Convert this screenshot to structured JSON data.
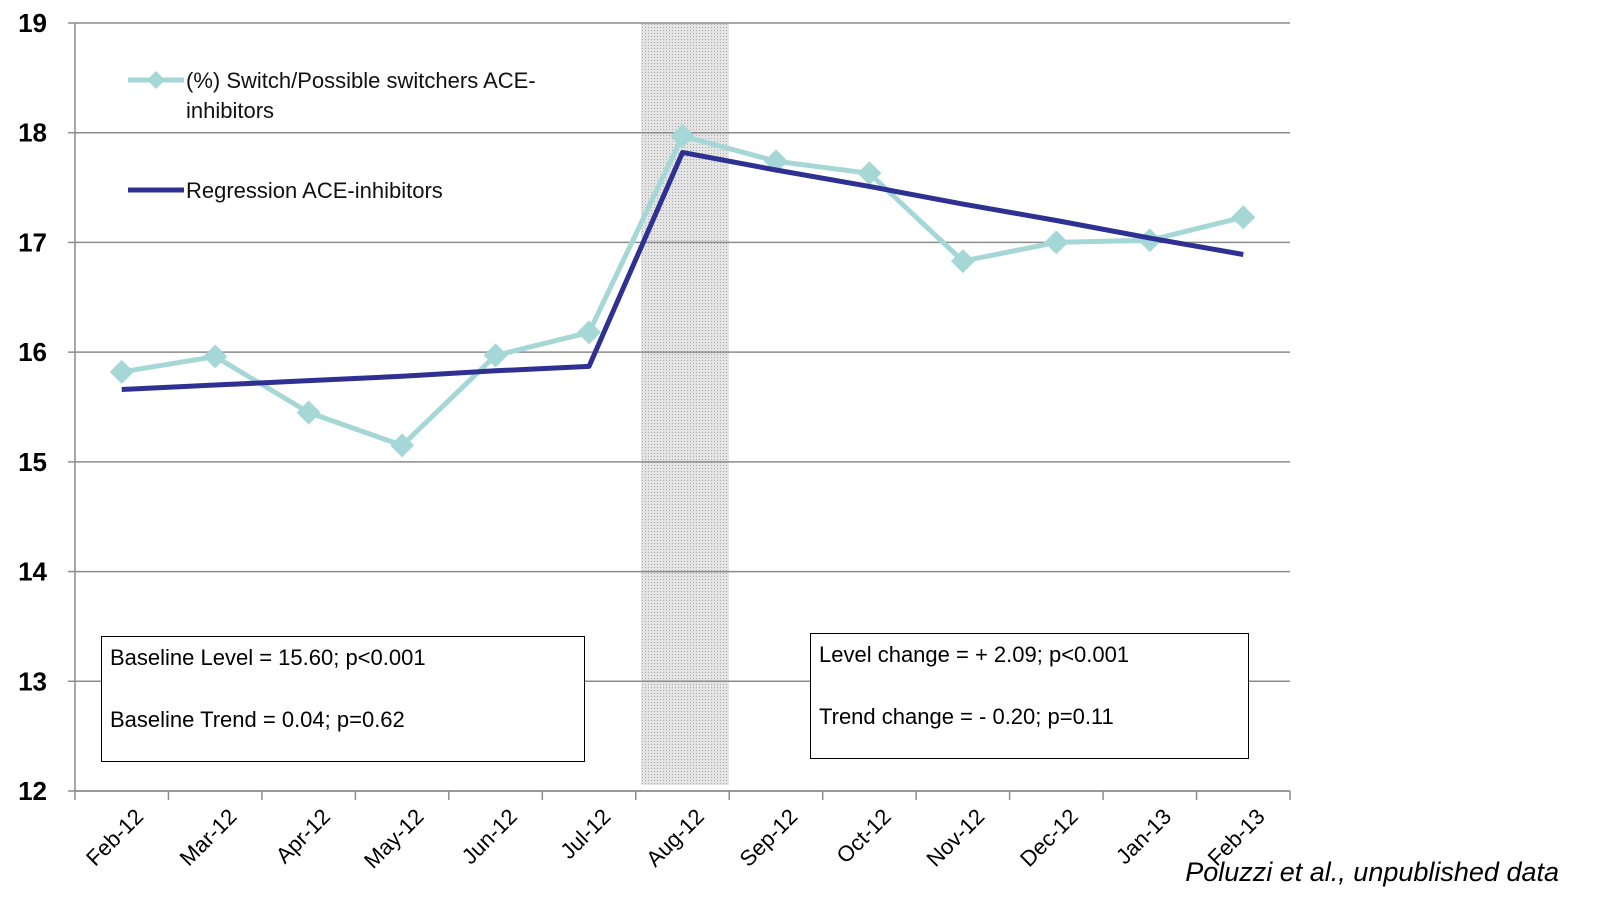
{
  "chart_data": {
    "type": "line",
    "categories": [
      "Feb-12",
      "Mar-12",
      "Apr-12",
      "May-12",
      "Jun-12",
      "Jul-12",
      "Aug-12",
      "Sep-12",
      "Oct-12",
      "Nov-12",
      "Dec-12",
      "Jan-13",
      "Feb-13"
    ],
    "series": [
      {
        "name": "(%) Switch/Possible switchers ACE-inhibitors",
        "color": "#a6d7d7",
        "marker": "diamond",
        "values": [
          15.82,
          15.96,
          15.45,
          15.15,
          15.97,
          16.18,
          17.97,
          17.74,
          17.63,
          16.83,
          17.0,
          17.02,
          17.23
        ]
      },
      {
        "name": "Regression ACE-inhibitors",
        "color": "#2e3192",
        "marker": "none",
        "values": [
          15.66,
          15.7,
          15.74,
          15.78,
          15.83,
          15.87,
          17.82,
          17.66,
          17.51,
          17.35,
          17.2,
          17.04,
          16.89
        ]
      }
    ],
    "ylim": [
      12,
      19
    ],
    "yticks": [
      12,
      13,
      14,
      15,
      16,
      17,
      18,
      19
    ],
    "grid": true,
    "annotations": [
      {
        "lines": [
          "Baseline Level = 15.60; p<0.001",
          "Baseline Trend = 0.04; p=0.62"
        ]
      },
      {
        "lines": [
          "Level change = + 2.09; p<0.001",
          "Trend change =  - 0.20; p=0.11"
        ]
      }
    ],
    "source": "Poluzzi et al., unpublished data"
  }
}
